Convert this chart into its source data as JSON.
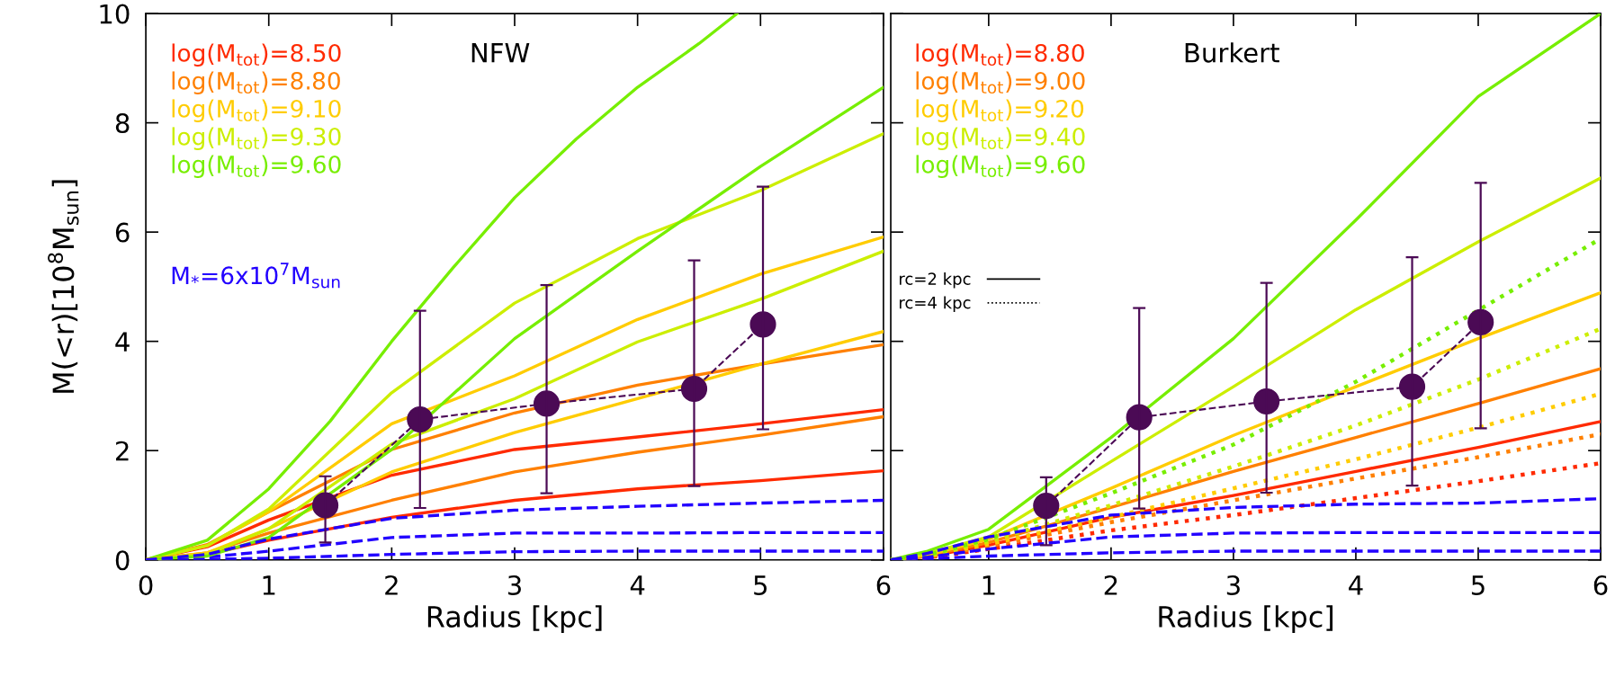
{
  "chart_data": [
    {
      "type": "line",
      "title": "NFW",
      "xlabel": "Radius [kpc]",
      "ylabel": "M(<r)[10$^{8}$M$_{sun}$]",
      "x": [
        0,
        0.5,
        1,
        2,
        3,
        4,
        5,
        6
      ],
      "xlim": [
        0,
        6
      ],
      "xticks": [
        0,
        1,
        2,
        3,
        4,
        5,
        6
      ],
      "ylim": [
        0,
        10
      ],
      "yticks": [
        0,
        2,
        4,
        6,
        8,
        10
      ],
      "series": [
        {
          "name": "log(M$_{tot}$)=8.50",
          "color": "#ff2a00",
          "values": [
            0,
            0.24,
            0.73,
            1.55,
            2.02,
            2.25,
            2.49,
            2.75
          ]
        },
        {
          "name": "log(M$_{tot}$)=8.80",
          "color": "#ff8000",
          "values": [
            0,
            0.28,
            0.88,
            2.02,
            2.69,
            3.2,
            3.58,
            3.94
          ]
        },
        {
          "name": "log(M$_{tot}$)=9.10",
          "color": "#ffcc00",
          "values": [
            0,
            0.26,
            0.88,
            2.49,
            3.37,
            4.4,
            5.23,
            5.91
          ]
        },
        {
          "name": "log(M$_{tot}$)=9.30",
          "color": "#ccee00",
          "values": [
            0,
            0.26,
            0.93,
            3.06,
            4.7,
            5.88,
            6.76,
            7.8
          ]
        },
        {
          "name": "log(M$_{tot}$)=9.60",
          "color": "#77ee00",
          "x": [
            0,
            0.5,
            1,
            1.5,
            2,
            2.5,
            3,
            3.5,
            4,
            4.5,
            4.81
          ],
          "values": [
            0,
            0.36,
            1.3,
            2.54,
            4.0,
            5.35,
            6.63,
            7.7,
            8.65,
            9.45,
            10
          ]
        },
        {
          "name": "M$_{*}$=6x10$^{7}$M$_{sun}$",
          "color": "#2200ff",
          "line_style": "dashed",
          "values": [
            0,
            0.05,
            0.16,
            0.41,
            0.49,
            0.49,
            0.5,
            0.5
          ]
        },
        {
          "color": "#ff2a00",
          "values": [
            0,
            0.1,
            0.36,
            0.78,
            1.09,
            1.3,
            1.45,
            1.63
          ]
        },
        {
          "color": "#ff8000",
          "values": [
            0,
            0.13,
            0.49,
            1.09,
            1.61,
            1.97,
            2.28,
            2.62
          ]
        },
        {
          "color": "#ffcc00",
          "values": [
            0,
            0.13,
            0.57,
            1.61,
            2.33,
            2.95,
            3.58,
            4.18
          ]
        },
        {
          "color": "#ccee00",
          "values": [
            0,
            0.1,
            0.57,
            2.12,
            2.95,
            3.99,
            4.77,
            5.65
          ]
        },
        {
          "color": "#77ee00",
          "values": [
            0,
            0.07,
            0.41,
            2.02,
            4.05,
            5.65,
            7.2,
            8.65
          ]
        },
        {
          "color": "#2200ff",
          "line_style": "dashed",
          "values": [
            0,
            0.1,
            0.38,
            0.76,
            0.91,
            0.98,
            1.04,
            1.09
          ]
        },
        {
          "color": "#2200ff",
          "line_style": "dashed",
          "values": [
            0,
            0.01,
            0.03,
            0.1,
            0.15,
            0.16,
            0.16,
            0.16
          ]
        },
        {
          "color": "#4b0a55",
          "line_style": "dashed",
          "marker": "circle",
          "x": [
            1.46,
            2.23,
            3.26,
            4.46,
            5.02
          ],
          "values": [
            1.0,
            2.57,
            2.86,
            3.13,
            4.31
          ],
          "errors": [
            [
              0.32,
              1.53
            ],
            [
              0.95,
              4.56
            ],
            [
              1.22,
              5.03
            ],
            [
              1.35,
              5.48
            ],
            [
              2.39,
              6.83
            ]
          ]
        }
      ]
    },
    {
      "type": "line",
      "title": "Burkert",
      "xlabel": "Radius [kpc]",
      "tick_labels": "x",
      "x": [
        0.2,
        0.5,
        1,
        2,
        3,
        4,
        5,
        6
      ],
      "xlim": [
        0.2,
        6
      ],
      "xticks": [
        1,
        2,
        3,
        4,
        5,
        6
      ],
      "ylim": [
        0,
        10
      ],
      "yticks": [
        {
          "value": 0,
          "label": null
        },
        {
          "value": 2,
          "label": null
        },
        {
          "value": 4,
          "label": null
        },
        {
          "value": 6,
          "label": null
        },
        {
          "value": 8,
          "label": null
        },
        {
          "value": 10,
          "label": null
        }
      ],
      "annotations": [
        "rc=2 kpc",
        "rc=4 kpc"
      ],
      "series": [
        {
          "name": "log(M$_{tot}$)=8.80",
          "color": "#ff2a00",
          "values": [
            0,
            0.06,
            0.27,
            0.78,
            1.18,
            1.62,
            2.06,
            2.53
          ]
        },
        {
          "name": "log(M$_{tot}$)=9.00",
          "color": "#ff8000",
          "values": [
            0,
            0.07,
            0.32,
            0.96,
            1.62,
            2.24,
            2.86,
            3.5
          ]
        },
        {
          "name": "log(M$_{tot}$)=9.20",
          "color": "#ffcc00",
          "values": [
            0,
            0.09,
            0.38,
            1.31,
            2.28,
            3.17,
            4.05,
            4.89
          ]
        },
        {
          "name": "log(M$_{tot}$)=9.40",
          "color": "#ccee00",
          "values": [
            0,
            0.12,
            0.42,
            1.8,
            3.17,
            4.58,
            5.82,
            6.99
          ]
        },
        {
          "name": "log(M$_{tot}$)=9.60",
          "color": "#77ee00",
          "values": [
            0,
            0.16,
            0.56,
            2.24,
            4.05,
            6.22,
            8.48,
            10.0
          ]
        },
        {
          "color": "#ff2a00",
          "line_style": "dotted",
          "values": [
            0,
            0.04,
            0.2,
            0.54,
            0.82,
            1.13,
            1.44,
            1.77
          ]
        },
        {
          "color": "#ff8000",
          "line_style": "dotted",
          "values": [
            0,
            0.05,
            0.25,
            0.69,
            1.09,
            1.49,
            1.88,
            2.3
          ]
        },
        {
          "color": "#ffcc00",
          "line_style": "dotted",
          "values": [
            0,
            0.07,
            0.29,
            0.78,
            1.31,
            1.84,
            2.42,
            3.04
          ]
        },
        {
          "color": "#ccee00",
          "line_style": "dotted",
          "values": [
            0,
            0.07,
            0.34,
            1.0,
            1.71,
            2.46,
            3.3,
            4.23
          ]
        },
        {
          "color": "#77ee00",
          "line_style": "dotted",
          "x": [
            0.2,
            0.5,
            1,
            2,
            3,
            4,
            6
          ],
          "values": [
            0,
            0.09,
            0.38,
            1.22,
            2.11,
            3.26,
            5.88
          ]
        },
        {
          "color": "#2200ff",
          "line_style": "dashed",
          "values": [
            0,
            0.12,
            0.42,
            0.82,
            0.96,
            1.02,
            1.04,
            1.12
          ]
        },
        {
          "color": "#2200ff",
          "line_style": "dashed",
          "values": [
            0,
            0.05,
            0.2,
            0.42,
            0.49,
            0.5,
            0.5,
            0.5
          ]
        },
        {
          "color": "#2200ff",
          "line_style": "dashed",
          "values": [
            0,
            0.02,
            0.07,
            0.13,
            0.16,
            0.16,
            0.16,
            0.16
          ]
        },
        {
          "color": "#4b0a55",
          "line_style": "dashed",
          "marker": "circle",
          "x": [
            1.47,
            2.23,
            3.27,
            4.46,
            5.02
          ],
          "values": [
            0.99,
            2.61,
            2.9,
            3.17,
            4.35
          ],
          "errors": [
            [
              0.27,
              1.51
            ],
            [
              0.94,
              4.61
            ],
            [
              1.23,
              5.07
            ],
            [
              1.36,
              5.54
            ],
            [
              2.41,
              6.9
            ]
          ]
        }
      ]
    }
  ]
}
